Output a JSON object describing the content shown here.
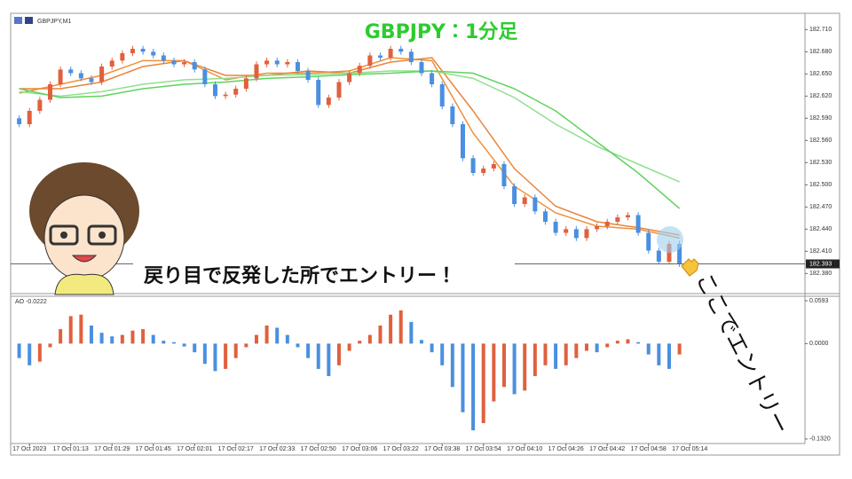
{
  "chart_data": [
    {
      "type": "candlestick",
      "symbol": "GBPJPY,M1",
      "title": "GBPJPY：1分足",
      "annotations": [
        "戻り目で反発した所でエントリー！",
        "ここでエントリー"
      ],
      "up_color": "#e0603e",
      "down_color": "#4a8fe0",
      "open": [
        182.59,
        182.582,
        182.6,
        182.615,
        182.636,
        182.656,
        182.651,
        182.644,
        182.639,
        182.66,
        182.668,
        182.678,
        182.684,
        182.68,
        182.675,
        182.668,
        182.663,
        182.666,
        182.656,
        182.636,
        182.62,
        182.622,
        182.63,
        182.644,
        182.663,
        182.668,
        182.663,
        182.666,
        182.654,
        182.642,
        182.608,
        182.618,
        182.639,
        182.651,
        182.661,
        182.675,
        182.672,
        182.684,
        182.68,
        182.666,
        182.651,
        182.636,
        182.606,
        182.582,
        182.536,
        182.516,
        182.522,
        182.528,
        182.498,
        182.474,
        182.483,
        182.464,
        182.45,
        182.435,
        182.44,
        182.428,
        182.44,
        182.444,
        182.45,
        182.456,
        182.459,
        182.435,
        182.411,
        182.396,
        182.42,
        null
      ],
      "high": [
        182.594,
        182.604,
        182.619,
        182.64,
        182.66,
        182.66,
        182.655,
        182.648,
        182.664,
        182.672,
        182.682,
        182.688,
        182.688,
        182.684,
        182.679,
        182.672,
        182.67,
        182.67,
        182.66,
        182.64,
        182.626,
        182.634,
        182.648,
        182.667,
        182.672,
        182.672,
        182.67,
        182.67,
        182.658,
        182.646,
        182.622,
        182.643,
        182.655,
        182.665,
        182.679,
        182.679,
        182.688,
        182.688,
        182.684,
        182.67,
        182.655,
        182.64,
        182.61,
        182.586,
        182.54,
        182.526,
        182.532,
        182.532,
        182.502,
        182.487,
        182.487,
        182.468,
        182.454,
        182.444,
        182.444,
        182.444,
        182.448,
        182.454,
        182.46,
        182.463,
        182.463,
        182.439,
        182.415,
        182.424,
        182.424,
        null
      ],
      "low": [
        182.578,
        182.578,
        182.596,
        182.611,
        182.632,
        182.647,
        182.64,
        182.635,
        182.635,
        182.656,
        182.664,
        182.674,
        182.676,
        182.671,
        182.664,
        182.659,
        182.659,
        182.652,
        182.632,
        182.616,
        182.616,
        182.618,
        182.626,
        182.64,
        182.659,
        182.659,
        182.659,
        182.65,
        182.638,
        182.604,
        182.604,
        182.614,
        182.635,
        182.647,
        182.657,
        182.668,
        182.668,
        182.676,
        182.662,
        182.647,
        182.632,
        182.602,
        182.578,
        182.532,
        182.512,
        182.512,
        182.518,
        182.494,
        182.47,
        182.47,
        182.46,
        182.446,
        182.431,
        182.431,
        182.424,
        182.424,
        182.436,
        182.44,
        182.446,
        182.452,
        182.431,
        182.407,
        182.392,
        182.392,
        182.389,
        null
      ],
      "close": [
        182.582,
        182.6,
        182.615,
        182.636,
        182.656,
        182.651,
        182.644,
        182.639,
        182.66,
        182.668,
        182.678,
        182.684,
        182.68,
        182.675,
        182.668,
        182.663,
        182.666,
        182.656,
        182.636,
        182.62,
        182.622,
        182.63,
        182.644,
        182.663,
        182.668,
        182.663,
        182.666,
        182.654,
        182.642,
        182.608,
        182.618,
        182.639,
        182.651,
        182.661,
        182.675,
        182.672,
        182.684,
        182.68,
        182.666,
        182.651,
        182.636,
        182.606,
        182.582,
        182.536,
        182.516,
        182.522,
        182.528,
        182.498,
        182.474,
        182.483,
        182.464,
        182.45,
        182.435,
        182.44,
        182.428,
        182.44,
        182.444,
        182.45,
        182.456,
        182.459,
        182.435,
        182.411,
        182.396,
        182.42,
        182.393,
        null
      ],
      "ma_x": [
        0,
        4,
        8,
        12,
        16,
        20,
        24,
        28,
        32,
        36,
        40,
        44,
        48,
        52,
        56,
        60,
        64
      ],
      "ma": [
        {
          "color": "#f0903a",
          "values": [
            182.624,
            182.636,
            182.648,
            182.668,
            182.668,
            182.642,
            182.651,
            182.651,
            182.654,
            182.672,
            182.668,
            182.57,
            182.498,
            182.462,
            182.444,
            182.44,
            182.428
          ]
        },
        {
          "color": "#e8853a",
          "values": [
            182.63,
            182.63,
            182.639,
            182.66,
            182.668,
            182.648,
            182.648,
            182.654,
            182.651,
            182.666,
            182.672,
            182.6,
            182.522,
            182.471,
            182.45,
            182.442,
            182.432
          ]
        },
        {
          "color": "#8fe08f",
          "values": [
            182.626,
            182.62,
            182.626,
            182.636,
            182.642,
            182.644,
            182.648,
            182.649,
            182.651,
            182.654,
            182.654,
            182.644,
            182.618,
            182.582,
            182.552,
            182.528,
            182.504
          ]
        },
        {
          "color": "#5fd35f",
          "values": [
            182.63,
            182.618,
            182.62,
            182.63,
            182.636,
            182.639,
            182.644,
            182.646,
            182.649,
            182.651,
            182.654,
            182.651,
            182.63,
            182.6,
            182.558,
            182.516,
            182.468
          ]
        }
      ],
      "last_price": 182.393,
      "ylim": [
        182.354,
        182.732
      ],
      "yticks": [
        {
          "value": 182.71,
          "label": "182.710"
        },
        {
          "value": 182.68,
          "label": "182.680"
        },
        {
          "value": 182.65,
          "label": "182.650"
        },
        {
          "value": 182.62,
          "label": "182.620"
        },
        {
          "value": 182.59,
          "label": "182.590"
        },
        {
          "value": 182.56,
          "label": "182.560"
        },
        {
          "value": 182.53,
          "label": "182.530"
        },
        {
          "value": 182.5,
          "label": "182.500"
        },
        {
          "value": 182.47,
          "label": "182.470"
        },
        {
          "value": 182.44,
          "label": "182.440"
        },
        {
          "value": 182.41,
          "label": "182.410"
        },
        {
          "value": 182.38,
          "label": "182.380"
        }
      ]
    },
    {
      "type": "bar",
      "title": "AO -0.0222",
      "up_color": "#e0603e",
      "down_color": "#4a8fe0",
      "categories": [
        null,
        "17 Oct 2023",
        null,
        null,
        null,
        "17 Oct 01:13",
        null,
        null,
        null,
        "17 Oct 01:29",
        null,
        null,
        null,
        "17 Oct 01:45",
        null,
        null,
        null,
        "17 Oct 02:01",
        null,
        null,
        null,
        "17 Oct 02:17",
        null,
        null,
        null,
        "17 Oct 02:33",
        null,
        null,
        null,
        "17 Oct 02:50",
        null,
        null,
        null,
        "17 Oct 03:06",
        null,
        null,
        null,
        "17 Oct 03:22",
        null,
        null,
        null,
        "17 Oct 03:38",
        null,
        null,
        null,
        "17 Oct 03:54",
        null,
        null,
        null,
        "17 Oct 04:10",
        null,
        null,
        null,
        "17 Oct 04:26",
        null,
        null,
        null,
        "17 Oct 04:42",
        null,
        null,
        null,
        "17 Oct 04:58",
        null,
        null,
        null,
        "17 Oct 05:14"
      ],
      "values": [
        -0.02,
        -0.03,
        -0.025,
        -0.005,
        0.02,
        0.038,
        0.04,
        0.025,
        0.015,
        0.01,
        0.012,
        0.018,
        0.02,
        0.012,
        0.004,
        0.002,
        -0.004,
        -0.012,
        -0.028,
        -0.038,
        -0.035,
        -0.02,
        -0.005,
        0.012,
        0.025,
        0.022,
        0.012,
        -0.005,
        -0.02,
        -0.035,
        -0.045,
        -0.03,
        -0.01,
        0.004,
        0.012,
        0.025,
        0.04,
        0.046,
        0.03,
        0.005,
        -0.012,
        -0.03,
        -0.06,
        -0.095,
        -0.12,
        -0.11,
        -0.08,
        -0.06,
        -0.07,
        -0.065,
        -0.045,
        -0.03,
        -0.035,
        -0.03,
        -0.02,
        -0.01,
        -0.012,
        -0.005,
        0.004,
        0.006,
        0.002,
        -0.015,
        -0.03,
        -0.035,
        -0.015,
        null
      ],
      "ylim": [
        -0.1358,
        0.0655
      ],
      "yticks": [
        0.0593,
        {
          "value": 0,
          "label": "0.0000"
        },
        {
          "value": -0.132,
          "label": "-0.1320"
        }
      ]
    }
  ]
}
